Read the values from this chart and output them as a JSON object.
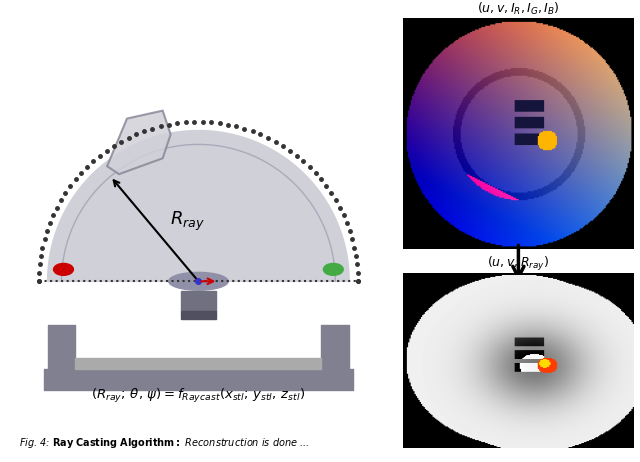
{
  "title": "Fig. 4: Ray Casting Algorithm: Reconstruction is done ...",
  "left_formula": "(R_{ray}; \\theta, \\psi) = f_{Raycast}(x_{stl}; y_{stl}, z_{stl})",
  "right_top_label": "(u, v, I_R, I_G, I_B)",
  "right_bottom_label": "(u, v, R_{ray})",
  "arrow_label": "R_{ray}",
  "background_color": "#ffffff",
  "sensor_body_color": "#d0d0d8",
  "sensor_dark_color": "#808090",
  "sensor_base_color": "#606060",
  "dotted_border_color": "#333333",
  "red_dot_color": "#cc0000",
  "green_dot_color": "#44aa44",
  "lens_color": "#9090a8",
  "arrow_color": "#000000",
  "red_arrow_color": "#cc0000",
  "blue_dot_color": "#4444cc"
}
